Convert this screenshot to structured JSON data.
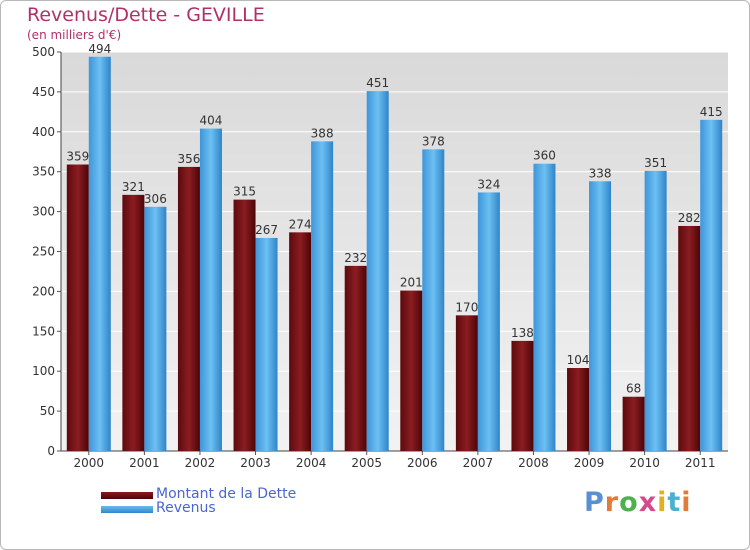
{
  "header": {
    "title": "Revenus/Dette - GEVILLE",
    "subtitle": "(en milliers d'€)"
  },
  "legend": {
    "items": [
      {
        "label": "Montant de la Dette",
        "color": "#6b0e12"
      },
      {
        "label": "Revenus",
        "color": "#4ba3e3"
      }
    ]
  },
  "brand": {
    "text": "Proxiti",
    "letter_colors": [
      "#5a8fd0",
      "#e07b39",
      "#4fb04f",
      "#d44b8c",
      "#e0b020",
      "#4ab0d0",
      "#e07b39"
    ]
  },
  "chart_data": {
    "type": "bar",
    "categories": [
      "2000",
      "2001",
      "2002",
      "2003",
      "2004",
      "2005",
      "2006",
      "2007",
      "2008",
      "2009",
      "2010",
      "2011"
    ],
    "series": [
      {
        "name": "Montant de la Dette",
        "values": [
          359,
          321,
          356,
          315,
          274,
          232,
          201,
          170,
          138,
          104,
          68,
          282
        ],
        "color": "#6b0e12"
      },
      {
        "name": "Revenus",
        "values": [
          494,
          306,
          404,
          267,
          388,
          451,
          378,
          324,
          360,
          338,
          351,
          415
        ],
        "color": "#4ba3e3"
      }
    ],
    "ylim": [
      0,
      500
    ],
    "yticks": [
      0,
      50,
      100,
      150,
      200,
      250,
      300,
      350,
      400,
      450,
      500
    ],
    "grid": true,
    "legend_position": "bottom-left"
  }
}
